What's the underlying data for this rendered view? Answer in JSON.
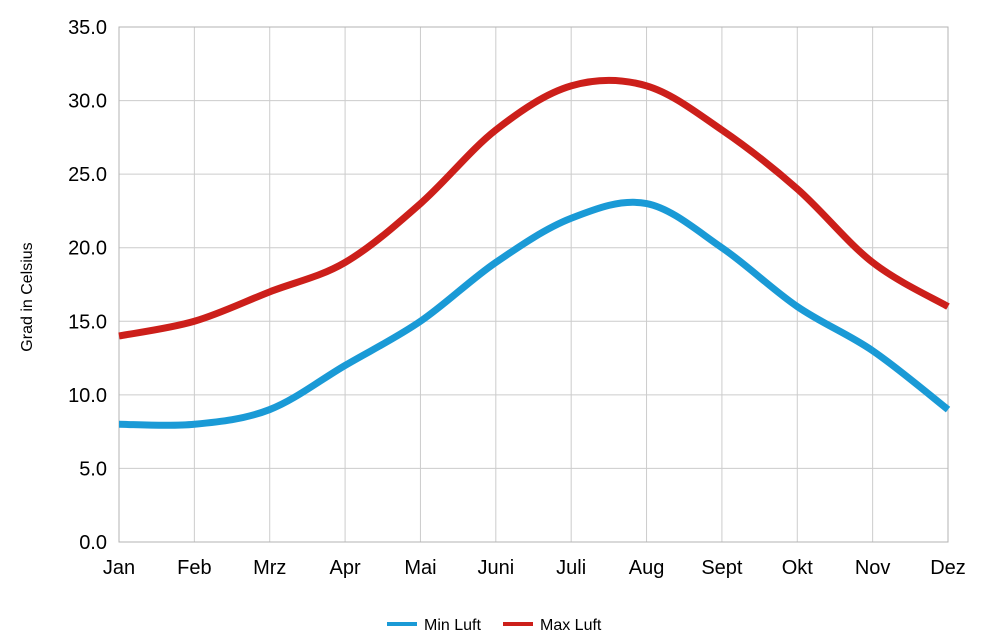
{
  "chart_data": {
    "type": "line",
    "title": "",
    "xlabel": "",
    "ylabel": "Grad in Celsius",
    "ylim": [
      0,
      35
    ],
    "yticks": [
      "0.0",
      "5.0",
      "10.0",
      "15.0",
      "20.0",
      "25.0",
      "30.0",
      "35.0"
    ],
    "categories": [
      "Jan",
      "Feb",
      "Mrz",
      "Apr",
      "Mai",
      "Juni",
      "Juli",
      "Aug",
      "Sept",
      "Okt",
      "Nov",
      "Dez"
    ],
    "grid": true,
    "smooth": true,
    "legend_position": "bottom",
    "series": [
      {
        "name": "Min Luft",
        "color": "#1a9ad6",
        "values": [
          8,
          8,
          9,
          12,
          15,
          19,
          22,
          23,
          20,
          16,
          13,
          9
        ]
      },
      {
        "name": "Max Luft",
        "color": "#cc1f1a",
        "values": [
          14,
          15,
          17,
          19,
          23,
          28,
          31,
          31,
          28,
          24,
          19,
          16
        ]
      }
    ]
  }
}
